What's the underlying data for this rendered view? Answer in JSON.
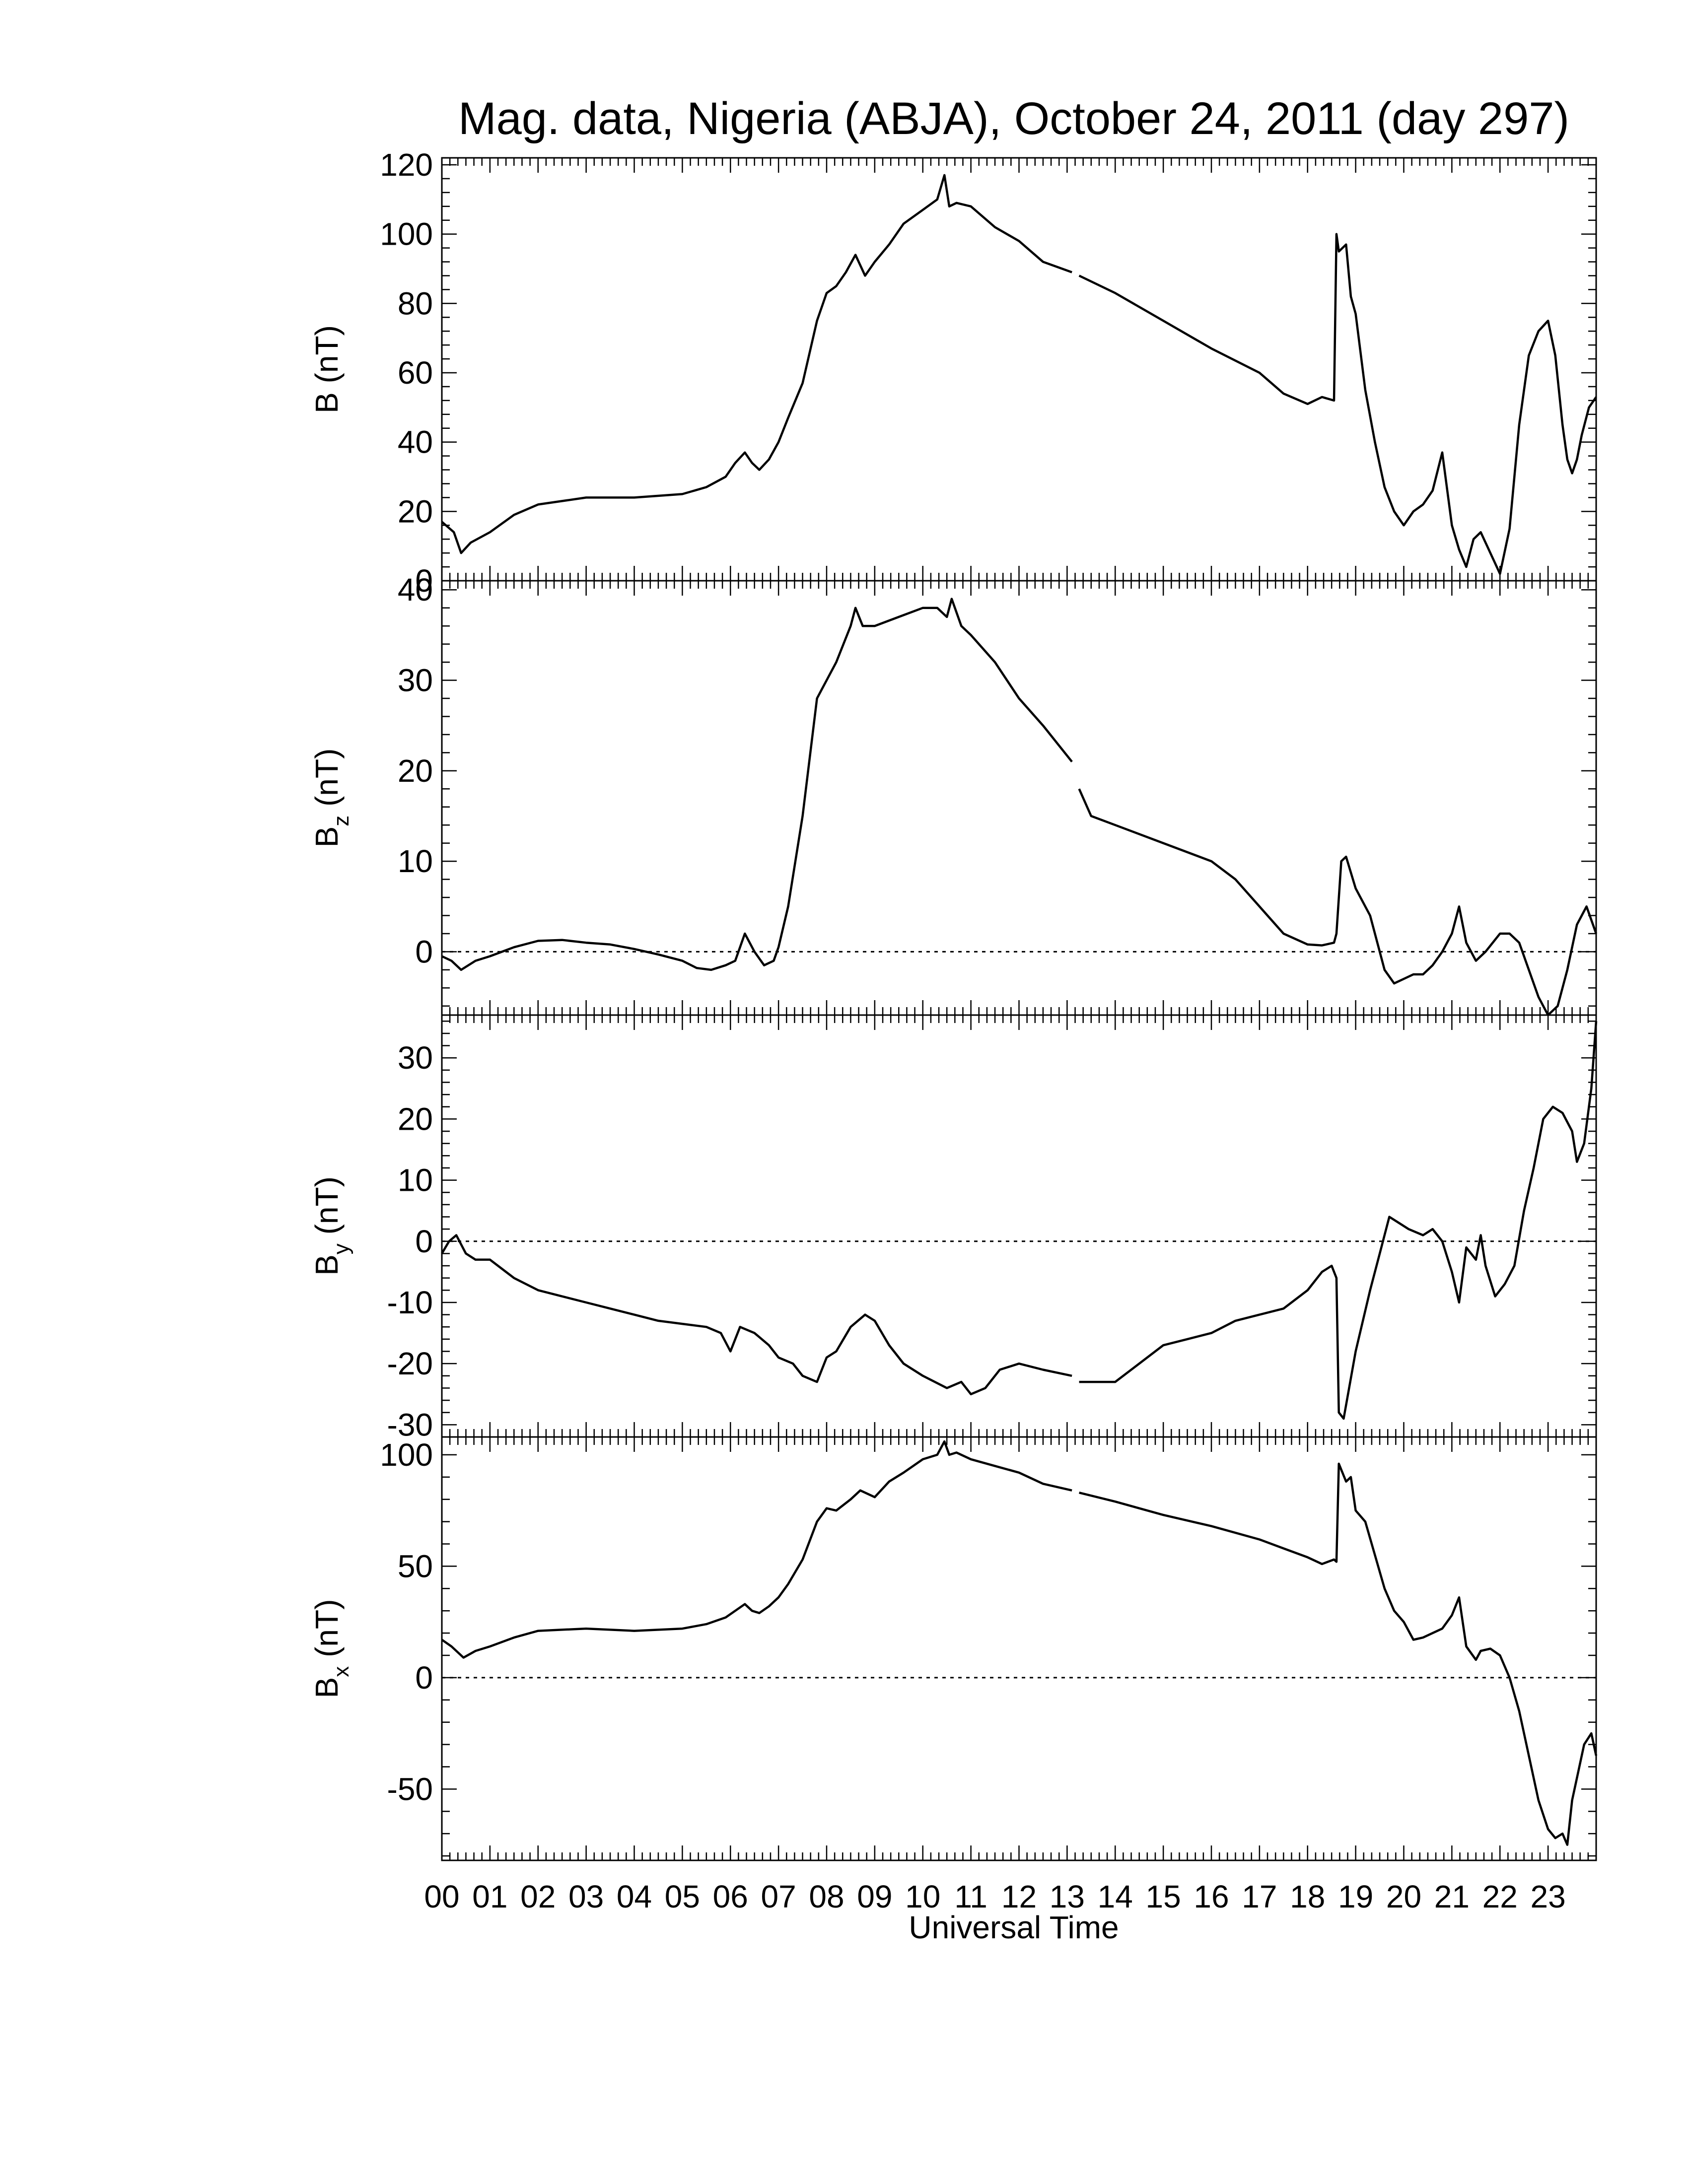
{
  "title": "Mag. data, Nigeria (ABJA), October 24, 2011 (day 297)",
  "colors": {
    "line": "#000000",
    "axis": "#000000",
    "background": "#ffffff"
  },
  "x_axis": {
    "label": "Universal Time",
    "tick_labels": [
      "00",
      "01",
      "02",
      "03",
      "04",
      "05",
      "06",
      "07",
      "08",
      "09",
      "10",
      "11",
      "12",
      "13",
      "14",
      "15",
      "16",
      "17",
      "18",
      "19",
      "20",
      "21",
      "22",
      "23"
    ]
  },
  "chart_data": [
    {
      "type": "line",
      "ylabel": "B (nT)",
      "ylabel_main": "B",
      "ylabel_sub": "",
      "ylabel_unit": "(nT)",
      "xlim": [
        0,
        24
      ],
      "ylim": [
        0,
        122
      ],
      "yticks": [
        0,
        20,
        40,
        60,
        80,
        100,
        120
      ],
      "ytick_labels": [
        "0",
        "20",
        "40",
        "60",
        "80",
        "100",
        "120"
      ],
      "zero_line": false,
      "gaps": [
        [
          13.1,
          13.25
        ]
      ],
      "x": [
        0.0,
        0.25,
        0.4,
        0.6,
        1.0,
        1.5,
        2.0,
        3.0,
        4.0,
        5.0,
        5.5,
        5.9,
        6.1,
        6.3,
        6.45,
        6.6,
        6.8,
        7.0,
        7.2,
        7.5,
        7.8,
        8.0,
        8.2,
        8.4,
        8.6,
        8.8,
        9.0,
        9.3,
        9.6,
        10.0,
        10.3,
        10.45,
        10.55,
        10.7,
        11.0,
        11.5,
        12.0,
        12.5,
        13.1,
        13.25,
        14.0,
        15.0,
        16.0,
        17.0,
        17.5,
        18.0,
        18.3,
        18.55,
        18.6,
        18.65,
        18.8,
        18.9,
        19.0,
        19.2,
        19.4,
        19.6,
        19.8,
        20.0,
        20.1,
        20.2,
        20.4,
        20.6,
        20.8,
        21.0,
        21.15,
        21.3,
        21.45,
        21.6,
        21.8,
        22.0,
        22.2,
        22.4,
        22.6,
        22.8,
        23.0,
        23.15,
        23.3,
        23.4,
        23.5,
        23.6,
        23.7,
        23.85,
        24.0
      ],
      "y": [
        17,
        14,
        8,
        11,
        14,
        19,
        22,
        24,
        24,
        25,
        27,
        30,
        34,
        37,
        34,
        32,
        35,
        40,
        47,
        57,
        75,
        83,
        85,
        89,
        94,
        88,
        92,
        97,
        103,
        107,
        110,
        117,
        108,
        109,
        108,
        102,
        98,
        92,
        89,
        88,
        83,
        75,
        67,
        60,
        54,
        51,
        53,
        52,
        100,
        95,
        97,
        82,
        77,
        55,
        40,
        27,
        20,
        16,
        18,
        20,
        22,
        26,
        37,
        16,
        9,
        4,
        12,
        14,
        8,
        2,
        15,
        45,
        65,
        72,
        75,
        65,
        45,
        35,
        31,
        35,
        42,
        50,
        53
      ]
    },
    {
      "type": "line",
      "ylabel": "Bz (nT)",
      "ylabel_main": "B",
      "ylabel_sub": "z",
      "ylabel_unit": "(nT)",
      "xlim": [
        0,
        24
      ],
      "ylim": [
        -7,
        41
      ],
      "yticks": [
        0,
        10,
        20,
        30,
        40
      ],
      "ytick_labels": [
        "0",
        "10",
        "20",
        "30",
        "40"
      ],
      "zero_line": true,
      "gaps": [
        [
          13.1,
          13.25
        ]
      ],
      "x": [
        0.0,
        0.2,
        0.4,
        0.7,
        1.0,
        1.5,
        2.0,
        2.5,
        3.0,
        3.5,
        4.0,
        4.5,
        5.0,
        5.3,
        5.6,
        5.9,
        6.1,
        6.3,
        6.5,
        6.7,
        6.9,
        7.0,
        7.2,
        7.5,
        7.8,
        8.0,
        8.2,
        8.5,
        8.6,
        8.75,
        9.0,
        9.5,
        10.0,
        10.3,
        10.5,
        10.6,
        10.8,
        11.0,
        11.5,
        12.0,
        12.5,
        13.1,
        13.25,
        13.5,
        14.0,
        15.0,
        16.0,
        16.5,
        17.0,
        17.5,
        18.0,
        18.3,
        18.55,
        18.6,
        18.7,
        18.8,
        19.0,
        19.3,
        19.6,
        19.8,
        20.0,
        20.2,
        20.4,
        20.6,
        20.8,
        21.0,
        21.15,
        21.3,
        21.5,
        21.7,
        22.0,
        22.2,
        22.4,
        22.6,
        22.8,
        23.0,
        23.2,
        23.4,
        23.6,
        23.8,
        24.0
      ],
      "y": [
        -0.5,
        -1,
        -2,
        -1,
        -0.5,
        0.5,
        1.2,
        1.3,
        1,
        0.8,
        0.3,
        -0.3,
        -1,
        -1.8,
        -2,
        -1.5,
        -1,
        2,
        0,
        -1.5,
        -1,
        0.5,
        5,
        15,
        28,
        30,
        32,
        36,
        38,
        36,
        36,
        37,
        38,
        38,
        37,
        39,
        36,
        35,
        32,
        28,
        25,
        21,
        18,
        15,
        14,
        12,
        10,
        8,
        5,
        2,
        0.8,
        0.7,
        1,
        2,
        10,
        10.5,
        7,
        4,
        -2,
        -3.5,
        -3,
        -2.5,
        -2.5,
        -1.5,
        0,
        2,
        5,
        1,
        -1,
        0,
        2,
        2,
        1,
        -2,
        -5,
        -7,
        -6,
        -2,
        3,
        5,
        2
      ]
    },
    {
      "type": "line",
      "ylabel": "By (nT)",
      "ylabel_main": "B",
      "ylabel_sub": "y",
      "ylabel_unit": "(nT)",
      "xlim": [
        0,
        24
      ],
      "ylim": [
        -32,
        37
      ],
      "yticks": [
        -30,
        -20,
        -10,
        0,
        10,
        20,
        30
      ],
      "ytick_labels": [
        "-30",
        "-20",
        "-10",
        "0",
        "10",
        "20",
        "30"
      ],
      "zero_line": true,
      "gaps": [
        [
          13.1,
          13.25
        ]
      ],
      "x": [
        0.0,
        0.15,
        0.3,
        0.5,
        0.7,
        1.0,
        1.5,
        2.0,
        2.5,
        3.0,
        3.5,
        4.0,
        4.5,
        5.0,
        5.5,
        5.8,
        6.0,
        6.2,
        6.5,
        6.8,
        7.0,
        7.3,
        7.5,
        7.8,
        8.0,
        8.2,
        8.5,
        8.8,
        9.0,
        9.3,
        9.6,
        10.0,
        10.5,
        10.8,
        11.0,
        11.3,
        11.6,
        12.0,
        12.5,
        13.1,
        13.25,
        13.5,
        14.0,
        14.5,
        15.0,
        15.5,
        16.0,
        16.5,
        17.0,
        17.5,
        18.0,
        18.3,
        18.5,
        18.6,
        18.65,
        18.75,
        19.0,
        19.3,
        19.5,
        19.7,
        19.9,
        20.1,
        20.4,
        20.6,
        20.8,
        21.0,
        21.15,
        21.3,
        21.5,
        21.6,
        21.7,
        21.9,
        22.1,
        22.3,
        22.5,
        22.7,
        22.9,
        23.1,
        23.3,
        23.5,
        23.6,
        23.75,
        23.9,
        24.0
      ],
      "y": [
        -2,
        0,
        1,
        -2,
        -3,
        -3,
        -6,
        -8,
        -9,
        -10,
        -11,
        -12,
        -13,
        -13.5,
        -14,
        -15,
        -18,
        -14,
        -15,
        -17,
        -19,
        -20,
        -22,
        -23,
        -19,
        -18,
        -14,
        -12,
        -13,
        -17,
        -20,
        -22,
        -24,
        -23,
        -25,
        -24,
        -21,
        -20,
        -21,
        -22,
        -23,
        -23,
        -23,
        -20,
        -17,
        -16,
        -15,
        -13,
        -12,
        -11,
        -8,
        -5,
        -4,
        -6,
        -28,
        -29,
        -18,
        -8,
        -2,
        4,
        3,
        2,
        1,
        2,
        0,
        -5,
        -10,
        -1,
        -3,
        1,
        -4,
        -9,
        -7,
        -4,
        5,
        12,
        20,
        22,
        21,
        18,
        13,
        16,
        25,
        36
      ]
    },
    {
      "type": "line",
      "ylabel": "Bx (nT)",
      "ylabel_main": "B",
      "ylabel_sub": "x",
      "ylabel_unit": "(nT)",
      "xlim": [
        0,
        24
      ],
      "ylim": [
        -82,
        108
      ],
      "yticks": [
        -50,
        0,
        50,
        100
      ],
      "ytick_labels": [
        "-50",
        "0",
        "50",
        "100"
      ],
      "zero_line": true,
      "gaps": [
        [
          13.1,
          13.25
        ]
      ],
      "x": [
        0.0,
        0.2,
        0.45,
        0.7,
        1.0,
        1.5,
        2.0,
        3.0,
        4.0,
        5.0,
        5.5,
        5.9,
        6.1,
        6.3,
        6.45,
        6.6,
        6.8,
        7.0,
        7.2,
        7.5,
        7.8,
        8.0,
        8.2,
        8.5,
        8.7,
        9.0,
        9.3,
        9.6,
        10.0,
        10.3,
        10.45,
        10.55,
        10.7,
        11.0,
        11.5,
        12.0,
        12.5,
        13.1,
        13.25,
        14.0,
        15.0,
        16.0,
        17.0,
        17.5,
        18.0,
        18.3,
        18.55,
        18.6,
        18.65,
        18.8,
        18.9,
        19.0,
        19.2,
        19.4,
        19.6,
        19.8,
        20.0,
        20.2,
        20.4,
        20.6,
        20.8,
        21.0,
        21.15,
        21.3,
        21.5,
        21.6,
        21.8,
        22.0,
        22.2,
        22.4,
        22.6,
        22.8,
        23.0,
        23.15,
        23.3,
        23.4,
        23.5,
        23.6,
        23.75,
        23.9,
        24.0
      ],
      "y": [
        17,
        14,
        9,
        12,
        14,
        18,
        21,
        22,
        21,
        22,
        24,
        27,
        30,
        33,
        30,
        29,
        32,
        36,
        42,
        53,
        70,
        76,
        75,
        80,
        84,
        81,
        88,
        92,
        98,
        100,
        106,
        100,
        101,
        98,
        95,
        92,
        87,
        84,
        83,
        79,
        73,
        68,
        62,
        58,
        54,
        51,
        53,
        52,
        96,
        88,
        90,
        75,
        70,
        55,
        40,
        30,
        25,
        17,
        18,
        20,
        22,
        28,
        36,
        14,
        8,
        12,
        13,
        10,
        0,
        -15,
        -35,
        -55,
        -68,
        -72,
        -70,
        -75,
        -55,
        -45,
        -30,
        -25,
        -35
      ]
    }
  ]
}
